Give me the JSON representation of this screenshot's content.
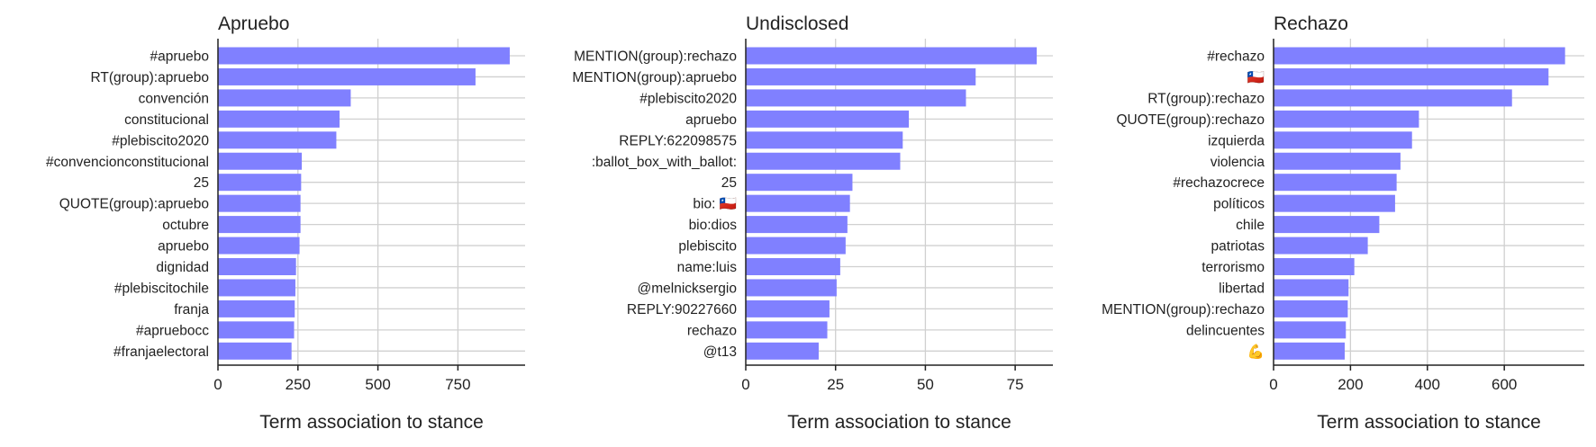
{
  "chart_data": [
    {
      "type": "bar",
      "orientation": "horizontal",
      "title": "Apruebo",
      "xlabel": "Term association to stance",
      "xlim": [
        0,
        960
      ],
      "xticks": [
        0,
        250,
        500,
        750
      ],
      "grid": true,
      "categories": [
        "#apruebo",
        "RT(group):apruebo",
        "convención",
        "constitucional",
        "#plebiscito2020",
        "#convencionconstitucional",
        "25",
        "QUOTE(group):apruebo",
        "octubre",
        "apruebo",
        "dignidad",
        "#plebiscitochile",
        "franja",
        "#apruebocc",
        "#franjaelectoral"
      ],
      "values": [
        912,
        805,
        415,
        380,
        370,
        262,
        260,
        258,
        258,
        255,
        244,
        242,
        240,
        238,
        230
      ]
    },
    {
      "type": "bar",
      "orientation": "horizontal",
      "title": "Undisclosed",
      "xlabel": "Term association to stance",
      "xlim": [
        0,
        85.5
      ],
      "xticks": [
        0,
        25,
        50,
        75
      ],
      "grid": true,
      "categories": [
        "MENTION(group):rechazo",
        "MENTION(group):apruebo",
        "#plebiscito2020",
        "apruebo",
        "REPLY:622098575",
        ":ballot_box_with_ballot:",
        "25",
        "bio: 🇨🇱",
        "bio:dios",
        "plebiscito",
        "name:luis",
        "@melnicksergio",
        "REPLY:90227660",
        "rechazo",
        "@t13"
      ],
      "values": [
        81,
        64,
        61.3,
        45.4,
        43.7,
        43,
        29.7,
        29,
        28.3,
        27.8,
        26.3,
        25.3,
        23.3,
        22.7,
        20.3
      ]
    },
    {
      "type": "bar",
      "orientation": "horizontal",
      "title": "Rechazo",
      "xlabel": "Term association to stance",
      "xlim": [
        0,
        808
      ],
      "xticks": [
        0,
        200,
        400,
        600
      ],
      "grid": true,
      "categories": [
        "#rechazo",
        "🇨🇱",
        "RT(group):rechazo",
        "QUOTE(group):rechazo",
        "izquierda",
        "violencia",
        "#rechazocrece",
        "políticos",
        "chile",
        "patriotas",
        "terrorismo",
        "libertad",
        "MENTION(group):rechazo",
        "delincuentes",
        "💪"
      ],
      "values": [
        758,
        715,
        620,
        378,
        360,
        330,
        320,
        316,
        275,
        245,
        210,
        195,
        193,
        188,
        185
      ]
    }
  ],
  "style": {
    "bar_color": "#8080ff",
    "grid_color": "#d0d0d0",
    "axis_color": "#222222"
  }
}
